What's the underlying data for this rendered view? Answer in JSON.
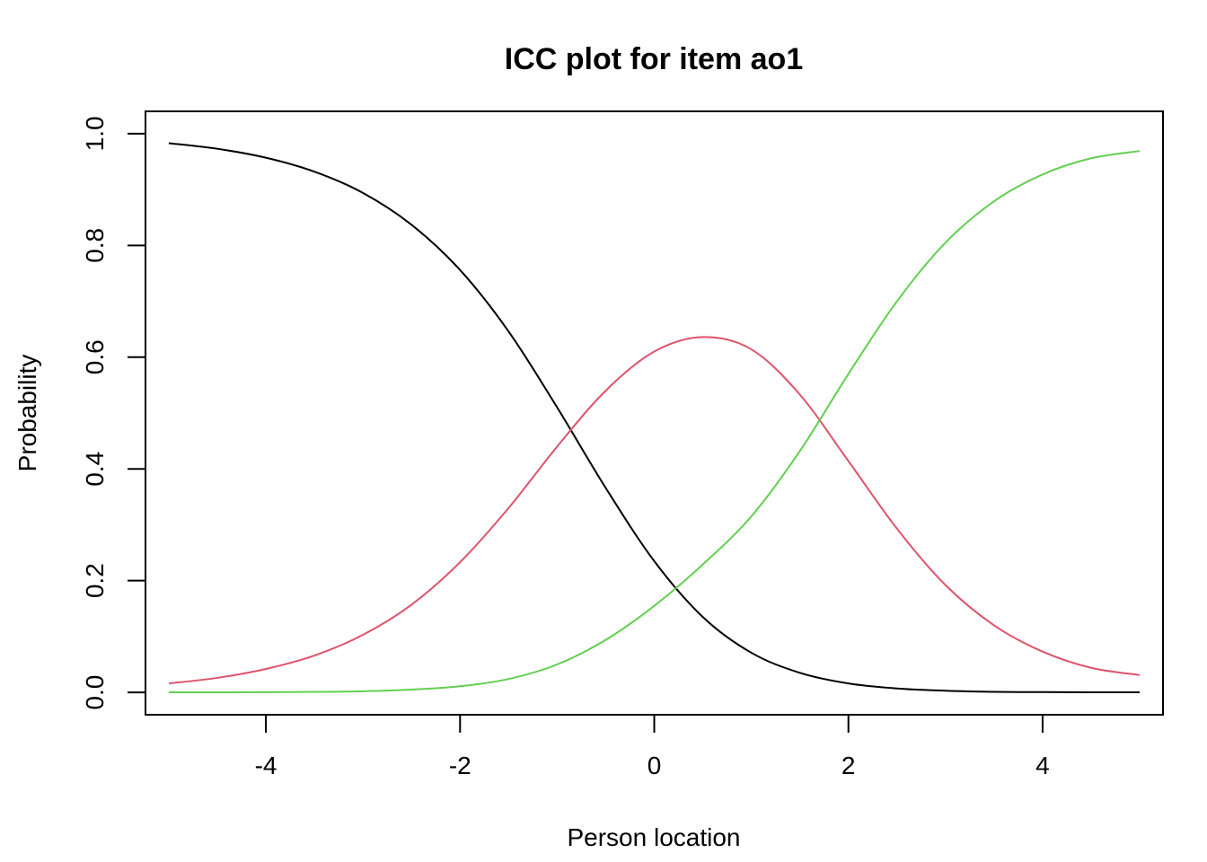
{
  "chart_data": {
    "type": "line",
    "title": "ICC plot for item ao1",
    "xlabel": "Person location",
    "ylabel": "Probability",
    "xlim": [
      -5.24,
      5.24
    ],
    "ylim": [
      -0.04,
      1.04
    ],
    "x_ticks": [
      -4,
      -2,
      0,
      2,
      4
    ],
    "x_tick_labels": [
      "-4",
      "-2",
      "0",
      "2",
      "4"
    ],
    "y_ticks": [
      0.0,
      0.2,
      0.4,
      0.6,
      0.8,
      1.0
    ],
    "y_tick_labels": [
      "0.0",
      "0.2",
      "0.4",
      "0.6",
      "0.8",
      "1.0"
    ],
    "grid": false,
    "legend": "none",
    "x": [
      -5,
      -4.5,
      -4,
      -3.5,
      -3,
      -2.5,
      -2,
      -1.5,
      -1,
      -0.5,
      0,
      0.5,
      1,
      1.5,
      2,
      2.5,
      3,
      3.5,
      4,
      4.5,
      5
    ],
    "series": [
      {
        "color": "#000000",
        "values": [
          0.983,
          0.973,
          0.957,
          0.932,
          0.894,
          0.837,
          0.756,
          0.646,
          0.51,
          0.366,
          0.235,
          0.135,
          0.071,
          0.035,
          0.016,
          0.007,
          0.003,
          0.001,
          0.0005,
          0.0002,
          0.0001
        ]
      },
      {
        "color": "#DF536B",
        "values": [
          0.016,
          0.026,
          0.042,
          0.066,
          0.103,
          0.157,
          0.233,
          0.33,
          0.44,
          0.54,
          0.61,
          0.636,
          0.614,
          0.533,
          0.414,
          0.293,
          0.192,
          0.12,
          0.073,
          0.044,
          0.031
        ]
      },
      {
        "color": "#61D04F",
        "values": [
          0.0001,
          0.0002,
          0.0004,
          0.0009,
          0.002,
          0.005,
          0.011,
          0.024,
          0.05,
          0.094,
          0.155,
          0.229,
          0.315,
          0.432,
          0.57,
          0.7,
          0.805,
          0.879,
          0.927,
          0.956,
          0.969
        ]
      }
    ]
  }
}
